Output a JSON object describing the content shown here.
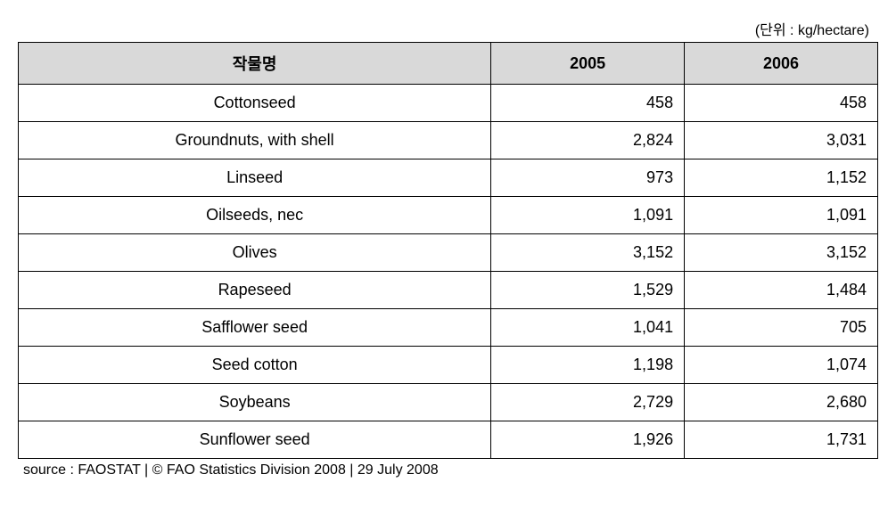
{
  "unit_label": "(단위 : kg/hectare)",
  "columns": {
    "crop": "작물명",
    "year1": "2005",
    "year2": "2006"
  },
  "rows": [
    {
      "crop": "Cottonseed",
      "y1": "458",
      "y2": "458"
    },
    {
      "crop": "Groundnuts, with shell",
      "y1": "2,824",
      "y2": "3,031"
    },
    {
      "crop": "Linseed",
      "y1": "973",
      "y2": "1,152"
    },
    {
      "crop": "Oilseeds, nec",
      "y1": "1,091",
      "y2": "1,091"
    },
    {
      "crop": "Olives",
      "y1": "3,152",
      "y2": "3,152"
    },
    {
      "crop": "Rapeseed",
      "y1": "1,529",
      "y2": "1,484"
    },
    {
      "crop": "Safflower seed",
      "y1": "1,041",
      "y2": "705"
    },
    {
      "crop": "Seed cotton",
      "y1": "1,198",
      "y2": "1,074"
    },
    {
      "crop": "Soybeans",
      "y1": "2,729",
      "y2": "2,680"
    },
    {
      "crop": "Sunflower seed",
      "y1": "1,926",
      "y2": "1,731"
    }
  ],
  "source": "source : FAOSTAT  |  © FAO Statistics Division 2008  |  29 July 2008",
  "styling": {
    "header_bg": "#d9d9d9",
    "border_color": "#000000",
    "body_bg": "#ffffff",
    "font_size_cell": 18,
    "font_size_meta": 16,
    "crop_col_width_pct": 55,
    "year_col_width_pct": 22.5,
    "crop_align": "center",
    "value_align": "right"
  }
}
